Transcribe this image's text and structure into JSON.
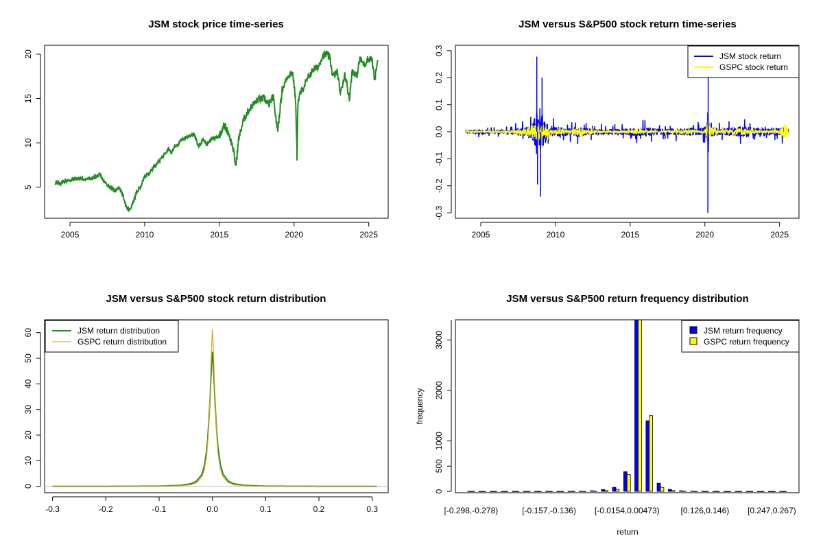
{
  "colors": {
    "jsm_price": "#228B22",
    "jsm_return": "#0000FF",
    "gspc_return": "#FFFF00",
    "jsm_density": "#228B22",
    "gspc_density": "#DAA520",
    "jsm_bar": "#0000FF",
    "gspc_bar": "#FFFF00"
  },
  "chart_data": [
    {
      "type": "line",
      "title": "JSM stock price time-series",
      "xlabel": "",
      "ylabel": "",
      "xlim": [
        2003.3,
        2026.3
      ],
      "ylim": [
        1.5,
        21
      ],
      "xticks": [
        2005,
        2010,
        2015,
        2020,
        2025
      ],
      "yticks": [
        5,
        10,
        15,
        20
      ],
      "series": [
        {
          "name": "JSM",
          "x": [
            2004.0,
            2004.3,
            2004.5,
            2005.0,
            2005.5,
            2006.0,
            2006.5,
            2007.0,
            2007.3,
            2007.6,
            2008.0,
            2008.3,
            2008.6,
            2008.8,
            2009.0,
            2009.2,
            2009.5,
            2009.8,
            2010.0,
            2010.3,
            2010.6,
            2011.0,
            2011.3,
            2011.6,
            2011.8,
            2012.0,
            2012.3,
            2012.6,
            2013.0,
            2013.3,
            2013.6,
            2013.9,
            2014.2,
            2014.5,
            2014.8,
            2015.0,
            2015.3,
            2015.6,
            2015.9,
            2016.1,
            2016.3,
            2016.6,
            2016.9,
            2017.2,
            2017.6,
            2018.0,
            2018.3,
            2018.6,
            2018.9,
            2019.2,
            2019.6,
            2019.9,
            2020.1,
            2020.2,
            2020.25,
            2020.4,
            2020.7,
            2021.0,
            2021.3,
            2021.6,
            2021.9,
            2022.2,
            2022.4,
            2022.6,
            2022.9,
            2023.1,
            2023.4,
            2023.7,
            2023.9,
            2024.2,
            2024.4,
            2024.7,
            2024.9,
            2025.2,
            2025.4,
            2025.6
          ],
          "values": [
            5.5,
            5.4,
            5.6,
            5.8,
            6.0,
            5.9,
            6.0,
            6.4,
            5.6,
            5.1,
            4.6,
            5.0,
            3.8,
            2.6,
            2.4,
            3.2,
            4.5,
            5.3,
            6.2,
            6.6,
            7.3,
            8.0,
            8.7,
            9.4,
            8.8,
            9.6,
            10.0,
            10.5,
            10.8,
            11.0,
            9.6,
            10.4,
            9.8,
            10.5,
            10.6,
            10.8,
            12.0,
            11.2,
            9.5,
            7.4,
            10.5,
            12.5,
            13.5,
            14.2,
            14.9,
            15.0,
            14.3,
            15.2,
            11.3,
            16.0,
            17.6,
            18.0,
            15.0,
            8.3,
            14.5,
            15.5,
            16.5,
            17.5,
            18.3,
            18.5,
            19.8,
            20.0,
            19.5,
            17.5,
            18.0,
            15.5,
            17.8,
            15.0,
            18.2,
            17.5,
            19.5,
            18.8,
            19.4,
            19.5,
            17.0,
            19.4
          ]
        }
      ]
    },
    {
      "type": "line",
      "title": "JSM versus S&P500 stock return time-series",
      "xlabel": "",
      "ylabel": "",
      "xlim": [
        2003.3,
        2026.3
      ],
      "ylim": [
        -0.32,
        0.32
      ],
      "xticks": [
        2005,
        2010,
        2015,
        2020,
        2025
      ],
      "yticks": [
        -0.3,
        -0.2,
        -0.1,
        0.0,
        0.1,
        0.2,
        0.3
      ],
      "legend": {
        "position": "top-right",
        "entries": [
          "JSM stock return",
          "GSPC stock return"
        ]
      },
      "series": [
        {
          "name": "JSM stock return",
          "x": [
            2004.0,
            2005.0,
            2006.0,
            2007.0,
            2007.5,
            2008.0,
            2008.4,
            2008.7,
            2008.75,
            2008.8,
            2008.9,
            2009.0,
            2009.1,
            2009.2,
            2009.4,
            2009.6,
            2010.0,
            2011.0,
            2011.6,
            2012.0,
            2013.0,
            2014.0,
            2015.0,
            2016.0,
            2017.0,
            2018.0,
            2019.0,
            2019.8,
            2020.0,
            2020.15,
            2020.2,
            2020.25,
            2020.3,
            2020.5,
            2021.0,
            2022.0,
            2022.5,
            2023.0,
            2024.0,
            2025.0,
            2025.2,
            2025.6
          ],
          "amplitude": [
            0.02,
            0.02,
            0.018,
            0.022,
            0.04,
            0.05,
            0.07,
            0.2,
            0.28,
            0.19,
            0.12,
            0.24,
            0.2,
            0.14,
            0.1,
            0.06,
            0.05,
            0.04,
            0.06,
            0.04,
            0.03,
            0.03,
            0.04,
            0.05,
            0.03,
            0.035,
            0.04,
            0.04,
            0.05,
            0.1,
            0.3,
            0.23,
            0.06,
            0.05,
            0.04,
            0.045,
            0.06,
            0.05,
            0.04,
            0.04,
            0.05,
            0.03
          ]
        },
        {
          "name": "GSPC stock return",
          "x": [
            2004.0,
            2005.0,
            2006.0,
            2007.0,
            2007.5,
            2008.0,
            2008.7,
            2008.9,
            2009.2,
            2009.6,
            2010.0,
            2010.4,
            2011.0,
            2011.6,
            2012.0,
            2013.0,
            2014.0,
            2015.0,
            2015.6,
            2016.0,
            2017.0,
            2018.0,
            2018.9,
            2019.5,
            2020.0,
            2020.2,
            2020.3,
            2020.5,
            2021.0,
            2022.0,
            2022.5,
            2023.0,
            2024.0,
            2025.0,
            2025.3,
            2025.6
          ],
          "amplitude": [
            0.012,
            0.01,
            0.01,
            0.015,
            0.025,
            0.035,
            0.09,
            0.1,
            0.06,
            0.035,
            0.02,
            0.03,
            0.02,
            0.05,
            0.02,
            0.015,
            0.012,
            0.015,
            0.03,
            0.02,
            0.01,
            0.015,
            0.025,
            0.015,
            0.02,
            0.12,
            0.08,
            0.04,
            0.015,
            0.03,
            0.04,
            0.02,
            0.015,
            0.02,
            0.095,
            0.02
          ]
        }
      ]
    },
    {
      "type": "line",
      "title": "JSM versus S&P500 stock return distribution",
      "xlabel": "",
      "ylabel": "",
      "xlim": [
        -0.315,
        0.33
      ],
      "ylim": [
        -2.5,
        65
      ],
      "xticks": [
        -0.3,
        -0.2,
        -0.1,
        0.0,
        0.1,
        0.2,
        0.3
      ],
      "xtick_labels": [
        "-0.3",
        "-0.2",
        "-0.1",
        "0.0",
        "0.1",
        "0.2",
        "0.3"
      ],
      "yticks": [
        0,
        10,
        20,
        30,
        40,
        50,
        60
      ],
      "legend": {
        "position": "top-left",
        "entries": [
          "JSM return distribution",
          "GSPC return distribution"
        ]
      },
      "series": [
        {
          "name": "JSM return distribution",
          "x": [
            -0.3,
            -0.2,
            -0.1,
            -0.06,
            -0.04,
            -0.03,
            -0.02,
            -0.015,
            -0.01,
            -0.007,
            -0.004,
            -0.002,
            0.0,
            0.002,
            0.004,
            0.007,
            0.01,
            0.015,
            0.02,
            0.03,
            0.04,
            0.06,
            0.1,
            0.2,
            0.31
          ],
          "values": [
            0,
            0,
            0.05,
            0.4,
            1.0,
            2.0,
            4.5,
            8.0,
            15.0,
            24.0,
            36.0,
            46.0,
            52.5,
            47.0,
            37.0,
            25.0,
            16.0,
            8.5,
            4.7,
            2.0,
            1.0,
            0.4,
            0.05,
            0,
            0
          ]
        },
        {
          "name": "GSPC return distribution",
          "x": [
            -0.3,
            -0.2,
            -0.1,
            -0.06,
            -0.04,
            -0.03,
            -0.02,
            -0.015,
            -0.01,
            -0.007,
            -0.004,
            -0.002,
            0.0,
            0.002,
            0.004,
            0.007,
            0.01,
            0.015,
            0.02,
            0.03,
            0.04,
            0.06,
            0.1,
            0.2,
            0.31
          ],
          "values": [
            0,
            0,
            0.02,
            0.2,
            0.6,
            1.3,
            3.5,
            6.5,
            13.0,
            23.0,
            38.0,
            52.0,
            61.5,
            54.0,
            39.0,
            24.0,
            13.5,
            6.8,
            3.6,
            1.4,
            0.6,
            0.2,
            0.02,
            0,
            0
          ]
        }
      ]
    },
    {
      "type": "bar",
      "title": "JSM versus S&P500 return frequency distribution",
      "xlabel": "return",
      "ylabel": "frequency",
      "ylim": [
        0,
        3400
      ],
      "yticks": [
        0,
        500,
        1000,
        2000,
        3000
      ],
      "tick_labels": [
        "[-0.298,-0.278)",
        "[-0.157,-0.136)",
        "[-0.0154,0.00473)",
        "[0.126,0.146)",
        "[0.247,0.267)"
      ],
      "tick_label_bins": [
        0,
        7,
        14,
        21,
        27
      ],
      "legend": {
        "position": "top-right",
        "entries": [
          "JSM return frequency",
          "GSPC return frequency"
        ]
      },
      "bin_count": 29,
      "series": [
        {
          "name": "JSM return frequency",
          "values": [
            1,
            0,
            0,
            1,
            0,
            0,
            0,
            1,
            0,
            2,
            3,
            12,
            35,
            80,
            390,
            3400,
            1400,
            160,
            40,
            12,
            5,
            2,
            1,
            0,
            1,
            0,
            0,
            0,
            1
          ]
        },
        {
          "name": "GSPC return frequency",
          "values": [
            0,
            0,
            0,
            0,
            0,
            0,
            0,
            0,
            0,
            0,
            1,
            5,
            15,
            40,
            330,
            3400,
            1500,
            80,
            15,
            5,
            1,
            0,
            0,
            0,
            0,
            0,
            0,
            0,
            0
          ]
        }
      ]
    }
  ]
}
